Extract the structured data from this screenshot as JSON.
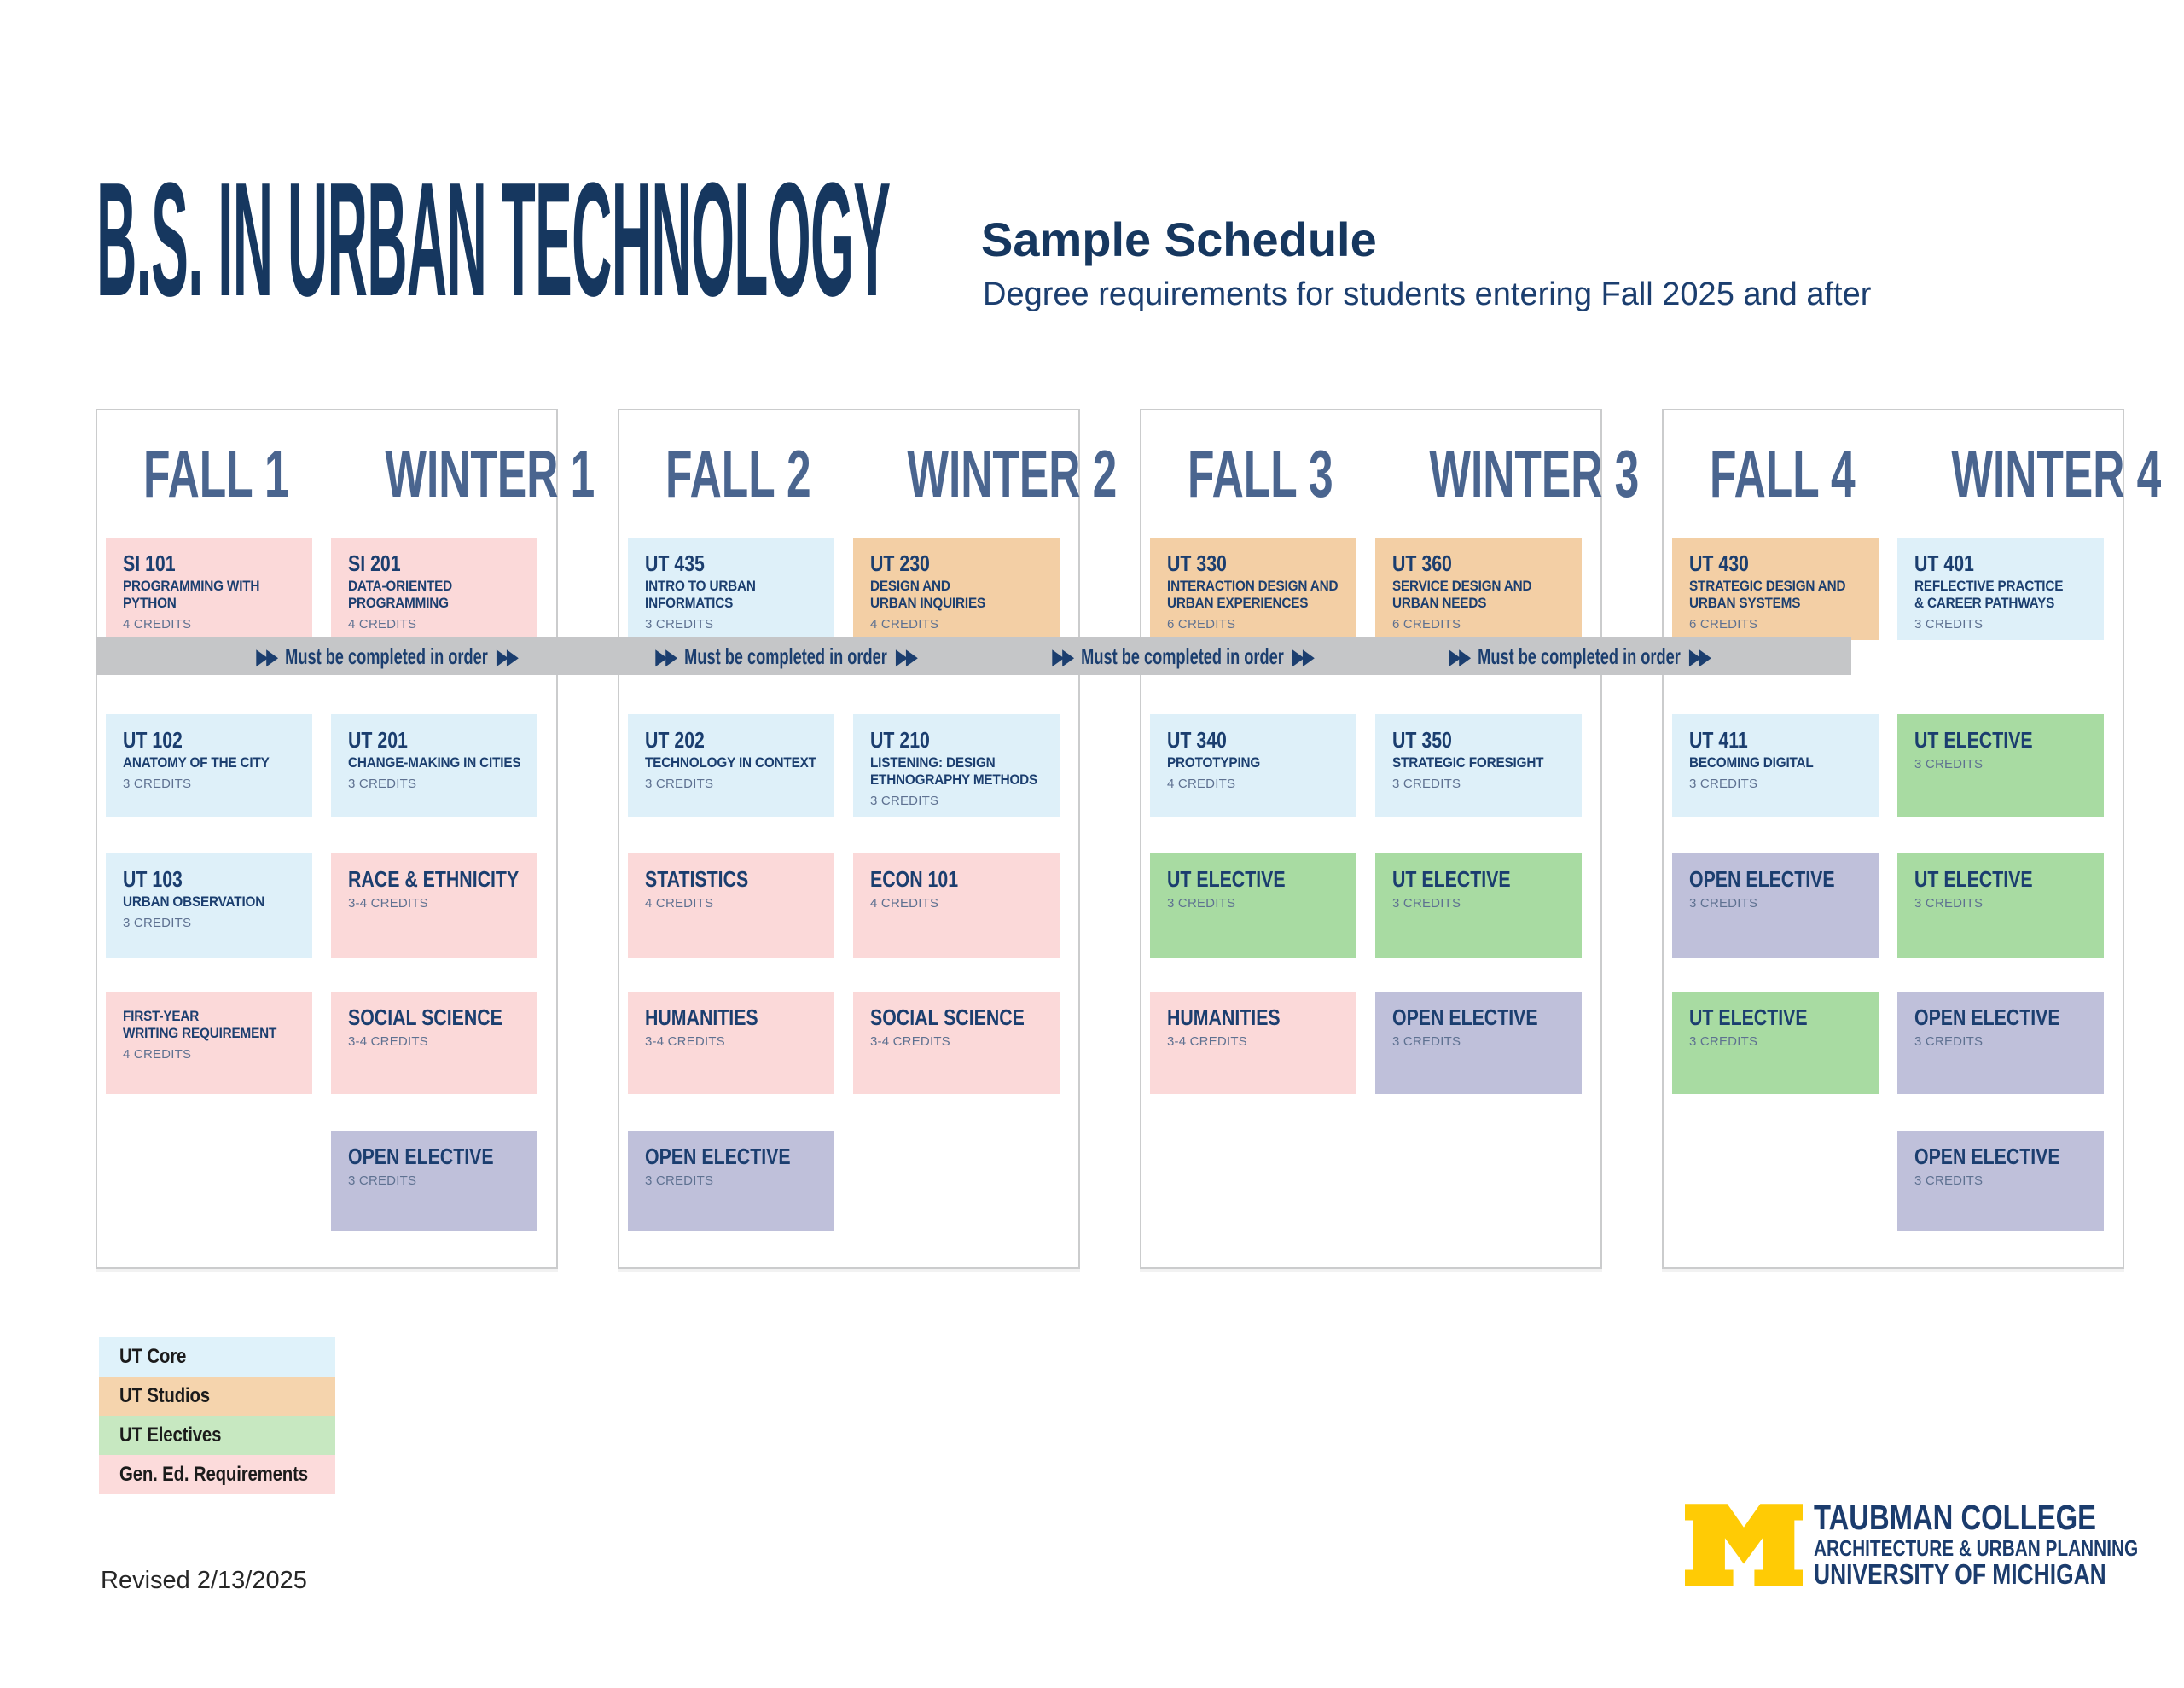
{
  "header": {
    "title": "B.S. IN URBAN TECHNOLOGY",
    "subtitle": "Sample Schedule",
    "subtitle_note": "Degree requirements for students entering Fall 2025 and after"
  },
  "colors": {
    "navy": "#1b3e6f",
    "steel_header": "#4a658f",
    "core": "#def0f9",
    "studio": "#f3cfa5",
    "elective": "#a8dba2",
    "gened": "#fbd9d9",
    "open": "#bfc0da",
    "band_gray": "#c5c6c8",
    "credits_text": "#5e7191",
    "maize": "#ffcb05",
    "legend_core": "#dff2fa",
    "legend_studio": "#f5d4ad",
    "legend_elective": "#c7e8c1",
    "legend_gened": "#fcdbdb"
  },
  "band": {
    "arrows": "▶▶",
    "label": "Must be completed in order",
    "instances": 4
  },
  "panels": [
    {
      "terms": [
        {
          "season": "FALL 1",
          "courses": [
            {
              "code": "SI 101",
              "title": "PROGRAMMING WITH\nPYTHON",
              "credits": "4 CREDITS",
              "type": "gened"
            },
            {
              "code": "UT 102",
              "title": "ANATOMY OF THE CITY",
              "credits": "3 CREDITS",
              "type": "core"
            },
            {
              "code": "UT 103",
              "title": "URBAN OBSERVATION",
              "credits": "3 CREDITS",
              "type": "core"
            },
            {
              "code": "",
              "title": "FIRST-YEAR\nWRITING REQUIREMENT",
              "credits": "4 CREDITS",
              "type": "gened"
            }
          ]
        },
        {
          "season": "WINTER 1",
          "courses": [
            {
              "code": "SI 201",
              "title": "DATA-ORIENTED\nPROGRAMMING",
              "credits": "4 CREDITS",
              "type": "gened"
            },
            {
              "code": "UT 201",
              "title": "CHANGE-MAKING IN CITIES",
              "credits": "3 CREDITS",
              "type": "core"
            },
            {
              "code": "RACE & ETHNICITY",
              "title": "",
              "credits": "3-4 CREDITS",
              "type": "gened"
            },
            {
              "code": "SOCIAL SCIENCE",
              "title": "",
              "credits": "3-4 CREDITS",
              "type": "gened"
            },
            {
              "code": "OPEN ELECTIVE",
              "title": "",
              "credits": "3 CREDITS",
              "type": "open"
            }
          ]
        }
      ]
    },
    {
      "terms": [
        {
          "season": "FALL 2",
          "courses": [
            {
              "code": "UT 435",
              "title": "INTRO TO URBAN\nINFORMATICS",
              "credits": "3 CREDITS",
              "type": "core"
            },
            {
              "code": "UT 202",
              "title": "TECHNOLOGY IN CONTEXT",
              "credits": "3 CREDITS",
              "type": "core"
            },
            {
              "code": "STATISTICS",
              "title": "",
              "credits": "4 CREDITS",
              "type": "gened"
            },
            {
              "code": "HUMANITIES",
              "title": "",
              "credits": "3-4 CREDITS",
              "type": "gened"
            },
            {
              "code": "OPEN ELECTIVE",
              "title": "",
              "credits": "3 CREDITS",
              "type": "open"
            }
          ]
        },
        {
          "season": "WINTER 2",
          "courses": [
            {
              "code": "UT 230",
              "title": "DESIGN AND\nURBAN INQUIRIES",
              "credits": "4 CREDITS",
              "type": "studio"
            },
            {
              "code": "UT 210",
              "title": "LISTENING: DESIGN\nETHNOGRAPHY METHODS",
              "credits": "3 CREDITS",
              "type": "core"
            },
            {
              "code": "ECON 101",
              "title": "",
              "credits": "4 CREDITS",
              "type": "gened"
            },
            {
              "code": "SOCIAL SCIENCE",
              "title": "",
              "credits": "3-4 CREDITS",
              "type": "gened"
            }
          ]
        }
      ]
    },
    {
      "terms": [
        {
          "season": "FALL 3",
          "courses": [
            {
              "code": "UT 330",
              "title": "INTERACTION DESIGN AND\nURBAN EXPERIENCES",
              "credits": "6 CREDITS",
              "type": "studio"
            },
            {
              "code": "UT 340",
              "title": "PROTOTYPING",
              "credits": "4 CREDITS",
              "type": "core"
            },
            {
              "code": "UT ELECTIVE",
              "title": "",
              "credits": "3 CREDITS",
              "type": "elective"
            },
            {
              "code": "HUMANITIES",
              "title": "",
              "credits": "3-4 CREDITS",
              "type": "gened"
            }
          ]
        },
        {
          "season": "WINTER 3",
          "courses": [
            {
              "code": "UT 360",
              "title": "SERVICE DESIGN AND\nURBAN NEEDS",
              "credits": "6 CREDITS",
              "type": "studio"
            },
            {
              "code": "UT 350",
              "title": "STRATEGIC FORESIGHT",
              "credits": "3 CREDITS",
              "type": "core"
            },
            {
              "code": "UT ELECTIVE",
              "title": "",
              "credits": "3 CREDITS",
              "type": "elective"
            },
            {
              "code": "OPEN ELECTIVE",
              "title": "",
              "credits": "3 CREDITS",
              "type": "open"
            }
          ]
        }
      ]
    },
    {
      "terms": [
        {
          "season": "FALL 4",
          "courses": [
            {
              "code": "UT 430",
              "title": "STRATEGIC DESIGN AND\nURBAN SYSTEMS",
              "credits": "6 CREDITS",
              "type": "studio"
            },
            {
              "code": "UT 411",
              "title": "BECOMING DIGITAL",
              "credits": "3 CREDITS",
              "type": "core"
            },
            {
              "code": "OPEN ELECTIVE",
              "title": "",
              "credits": "3 CREDITS",
              "type": "open"
            },
            {
              "code": "UT ELECTIVE",
              "title": "",
              "credits": "3 CREDITS",
              "type": "elective"
            }
          ]
        },
        {
          "season": "WINTER 4",
          "courses": [
            {
              "code": "UT 401",
              "title": "REFLECTIVE PRACTICE\n& CAREER PATHWAYS",
              "credits": "3 CREDITS",
              "type": "core"
            },
            {
              "code": "UT ELECTIVE",
              "title": "",
              "credits": "3 CREDITS",
              "type": "elective"
            },
            {
              "code": "UT ELECTIVE",
              "title": "",
              "credits": "3 CREDITS",
              "type": "elective"
            },
            {
              "code": "OPEN ELECTIVE",
              "title": "",
              "credits": "3 CREDITS",
              "type": "open"
            },
            {
              "code": "OPEN ELECTIVE",
              "title": "",
              "credits": "3 CREDITS",
              "type": "open"
            }
          ]
        }
      ]
    }
  ],
  "legend": [
    {
      "label": "UT Core",
      "type": "legend_core"
    },
    {
      "label": "UT Studios",
      "type": "legend_studio"
    },
    {
      "label": "UT Electives",
      "type": "legend_elective"
    },
    {
      "label": "Gen. Ed. Requirements",
      "type": "legend_gened"
    }
  ],
  "footer": {
    "revised": "Revised 2/13/2025"
  },
  "logo": {
    "line1": "TAUBMAN COLLEGE",
    "line2": "ARCHITECTURE & URBAN PLANNING",
    "line3": "UNIVERSITY OF MICHIGAN"
  }
}
